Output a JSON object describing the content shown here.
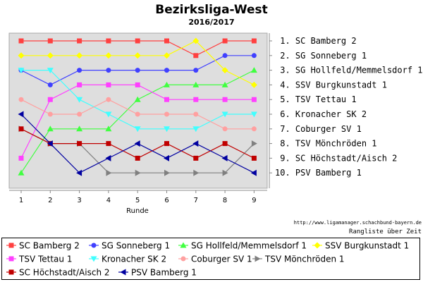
{
  "chart_data": {
    "type": "line",
    "title": "Bezirksliga-West",
    "subtitle": "2016/2017",
    "xlabel": "Runde",
    "ylabel": "",
    "x": [
      1,
      2,
      3,
      4,
      5,
      6,
      7,
      8,
      9
    ],
    "ylim": [
      1,
      10
    ],
    "y_inverted": true,
    "grid": false,
    "legend_position": "bottom",
    "right_axis_labels": [
      " 1. SC Bamberg 2",
      " 2. SG Sonneberg 1",
      " 3. SG Hollfeld/Memmelsdorf 1",
      " 4. SSV Burgkunstadt 1",
      " 5. TSV Tettau 1",
      " 6. Kronacher SK 2",
      " 7. Coburger SV 1",
      " 8. TSV Mönchröden 1",
      " 9. SC Höchstadt/Aisch 2",
      "10. PSV Bamberg 1"
    ],
    "source_url": "http://www.ligamanager.schachbund-bayern.de",
    "caption": "Rangliste über Zeit",
    "series": [
      {
        "name": "SC Bamberg 2",
        "color": "#ff4040",
        "marker": "square",
        "values": [
          1,
          1,
          1,
          1,
          1,
          1,
          2,
          1,
          1
        ]
      },
      {
        "name": "SG Sonneberg 1",
        "color": "#4040ff",
        "marker": "circle",
        "values": [
          3,
          4,
          3,
          3,
          3,
          3,
          3,
          2,
          2
        ]
      },
      {
        "name": "SG Hollfeld/Memmelsdorf 1",
        "color": "#40ff40",
        "marker": "triangle-up",
        "values": [
          10,
          7,
          7,
          7,
          5,
          4,
          4,
          4,
          3
        ]
      },
      {
        "name": "SSV Burgkunstadt 1",
        "color": "#ffff00",
        "marker": "diamond",
        "values": [
          2,
          2,
          2,
          2,
          2,
          2,
          1,
          3,
          4
        ]
      },
      {
        "name": "TSV Tettau 1",
        "color": "#ff40ff",
        "marker": "square",
        "values": [
          9,
          5,
          4,
          4,
          4,
          5,
          5,
          5,
          5
        ]
      },
      {
        "name": "Kronacher SK 2",
        "color": "#40ffff",
        "marker": "triangle-down",
        "values": [
          3,
          3,
          5,
          6,
          7,
          7,
          7,
          6,
          6
        ]
      },
      {
        "name": "Coburger SV 1",
        "color": "#ffa0a0",
        "marker": "circle",
        "values": [
          5,
          6,
          6,
          5,
          6,
          6,
          6,
          7,
          7
        ]
      },
      {
        "name": "TSV Mönchröden 1",
        "color": "#808080",
        "marker": "triangle-right",
        "values": [
          7,
          8,
          8,
          10,
          10,
          10,
          10,
          10,
          8
        ]
      },
      {
        "name": "SC Höchstadt/Aisch 2",
        "color": "#c00000",
        "marker": "square",
        "values": [
          7,
          8,
          8,
          8,
          9,
          8,
          9,
          8,
          9
        ]
      },
      {
        "name": "PSV Bamberg 1",
        "color": "#0000a0",
        "marker": "triangle-left",
        "values": [
          6,
          8,
          10,
          9,
          8,
          9,
          8,
          9,
          10
        ]
      }
    ]
  }
}
